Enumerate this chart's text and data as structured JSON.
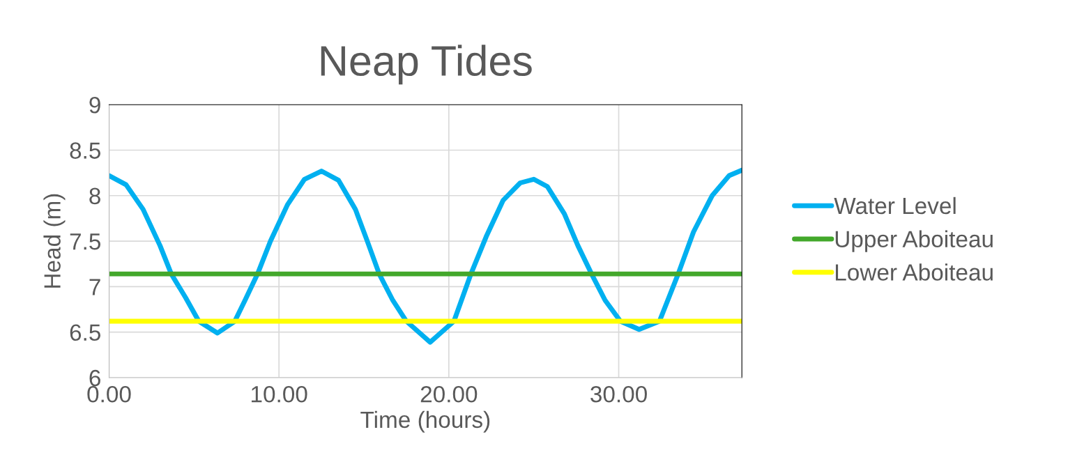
{
  "chart_data": {
    "type": "line",
    "title": "Neap Tides",
    "xlabel": "Time (hours)",
    "ylabel": "Head (m)",
    "series": [
      {
        "name": "Water Level",
        "color": "#00b0f0",
        "x": [
          0,
          1,
          2,
          3,
          3.66,
          4.5,
          5.28,
          6.38,
          7.4,
          8,
          8.74,
          9.5,
          10.5,
          11.5,
          12.5,
          13.5,
          14.5,
          15.2,
          15.9,
          16.7,
          17.5,
          18.9,
          20.3,
          21.3,
          22.2,
          23.2,
          24.2,
          25.0,
          25.8,
          26.8,
          27.6,
          28.4,
          29.2,
          30.1,
          31.2,
          32.4,
          33.5,
          34.4,
          35.5,
          36.5,
          37.25
        ],
        "values": [
          8.22,
          8.12,
          7.85,
          7.45,
          7.14,
          6.88,
          6.62,
          6.49,
          6.62,
          6.85,
          7.14,
          7.5,
          7.9,
          8.18,
          8.27,
          8.17,
          7.85,
          7.5,
          7.14,
          6.85,
          6.62,
          6.39,
          6.62,
          7.14,
          7.55,
          7.95,
          8.14,
          8.18,
          8.1,
          7.8,
          7.45,
          7.14,
          6.85,
          6.62,
          6.53,
          6.62,
          7.14,
          7.6,
          8.0,
          8.22,
          8.28
        ]
      },
      {
        "name": "Upper Aboiteau",
        "color": "#43a82b",
        "x": [
          0,
          37.25
        ],
        "values": [
          7.14,
          7.14
        ]
      },
      {
        "name": "Lower Aboiteau",
        "color": "#ffff00",
        "x": [
          0,
          37.25
        ],
        "values": [
          6.62,
          6.62
        ]
      }
    ],
    "xlim": [
      0,
      37.25
    ],
    "xticks": [
      {
        "value": 0,
        "label": "0.00"
      },
      {
        "value": 10,
        "label": "10.00"
      },
      {
        "value": 20,
        "label": "20.00"
      },
      {
        "value": 30,
        "label": "30.00"
      }
    ],
    "ylim": [
      6,
      9
    ],
    "yticks": [
      6,
      6.5,
      7,
      7.5,
      8,
      8.5,
      9
    ],
    "grid": true,
    "legend": "right",
    "marker": "none",
    "line_style": "solid"
  }
}
